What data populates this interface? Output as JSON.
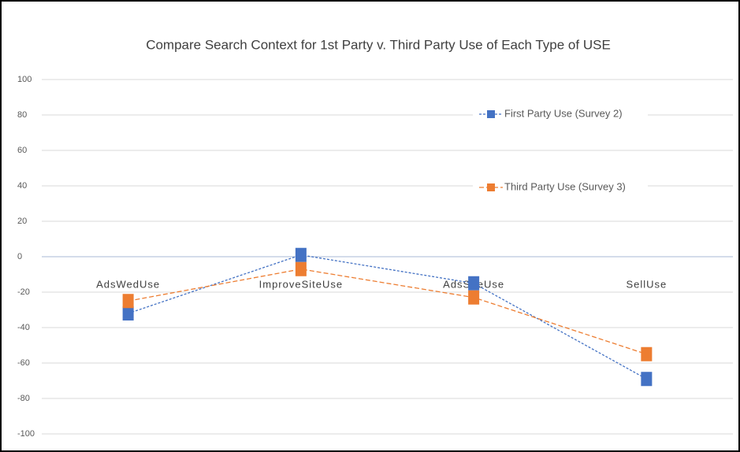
{
  "chart_data": {
    "type": "line",
    "title": "Compare Search Context for 1st Party v. Third Party Use of Each Type of USE",
    "categories": [
      "AdsWedUse",
      "ImproveSiteUse",
      "AdsSiteUse",
      "SellUse"
    ],
    "series": [
      {
        "name": "First Party Use (Survey 2)",
        "color": "#4472c4",
        "values": [
          -32,
          1,
          -15,
          -69
        ]
      },
      {
        "name": "Third Party Use (Survey 3)",
        "color": "#ed7d31",
        "values": [
          -25,
          -7,
          -23,
          -55
        ]
      }
    ],
    "ylim": [
      -100,
      100
    ],
    "yticks": [
      -100,
      -80,
      -60,
      -40,
      -20,
      0,
      20,
      40,
      60,
      80,
      100
    ],
    "grid": true,
    "legend": "top-right"
  }
}
